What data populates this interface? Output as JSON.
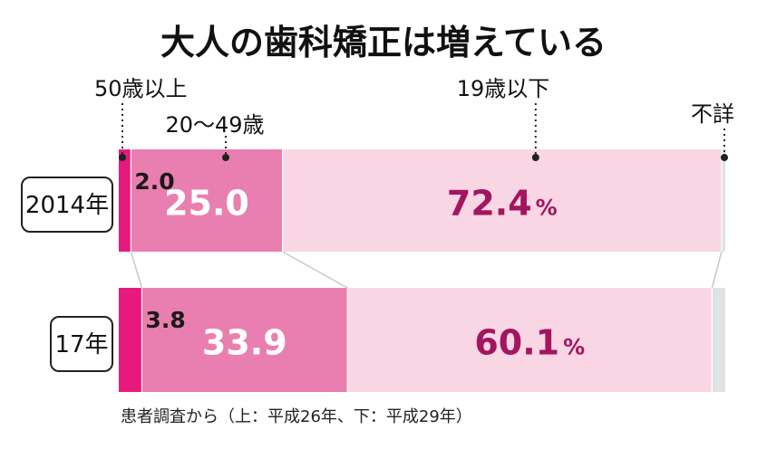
{
  "chart_data": {
    "type": "bar",
    "orientation": "horizontal",
    "stacked": true,
    "percent": true,
    "title": "大人の歯科矯正は増えている",
    "categories": [
      "2014年",
      "17年"
    ],
    "series": [
      {
        "name": "50歳以上",
        "values": [
          2.0,
          3.8
        ],
        "labels": [
          "2.0",
          "3.8"
        ],
        "color": "#e8197d"
      },
      {
        "name": "20～49歳",
        "values": [
          25.0,
          33.9
        ],
        "labels": [
          "25.0",
          "33.9"
        ],
        "color": "#e97fb0"
      },
      {
        "name": "19歳以下",
        "values": [
          72.4,
          60.1
        ],
        "labels": [
          "72.4",
          "60.1"
        ],
        "color": "#f9d6e4"
      },
      {
        "name": "不詳",
        "values": [
          0.6,
          2.2
        ],
        "labels": [
          "",
          ""
        ],
        "color": "#dfe3e6"
      }
    ],
    "percent_sign": "%",
    "xlim": [
      0,
      100
    ],
    "legend": "labels-above-bars",
    "source": "患者調査から（上：平成26年、下：平成29年）"
  }
}
